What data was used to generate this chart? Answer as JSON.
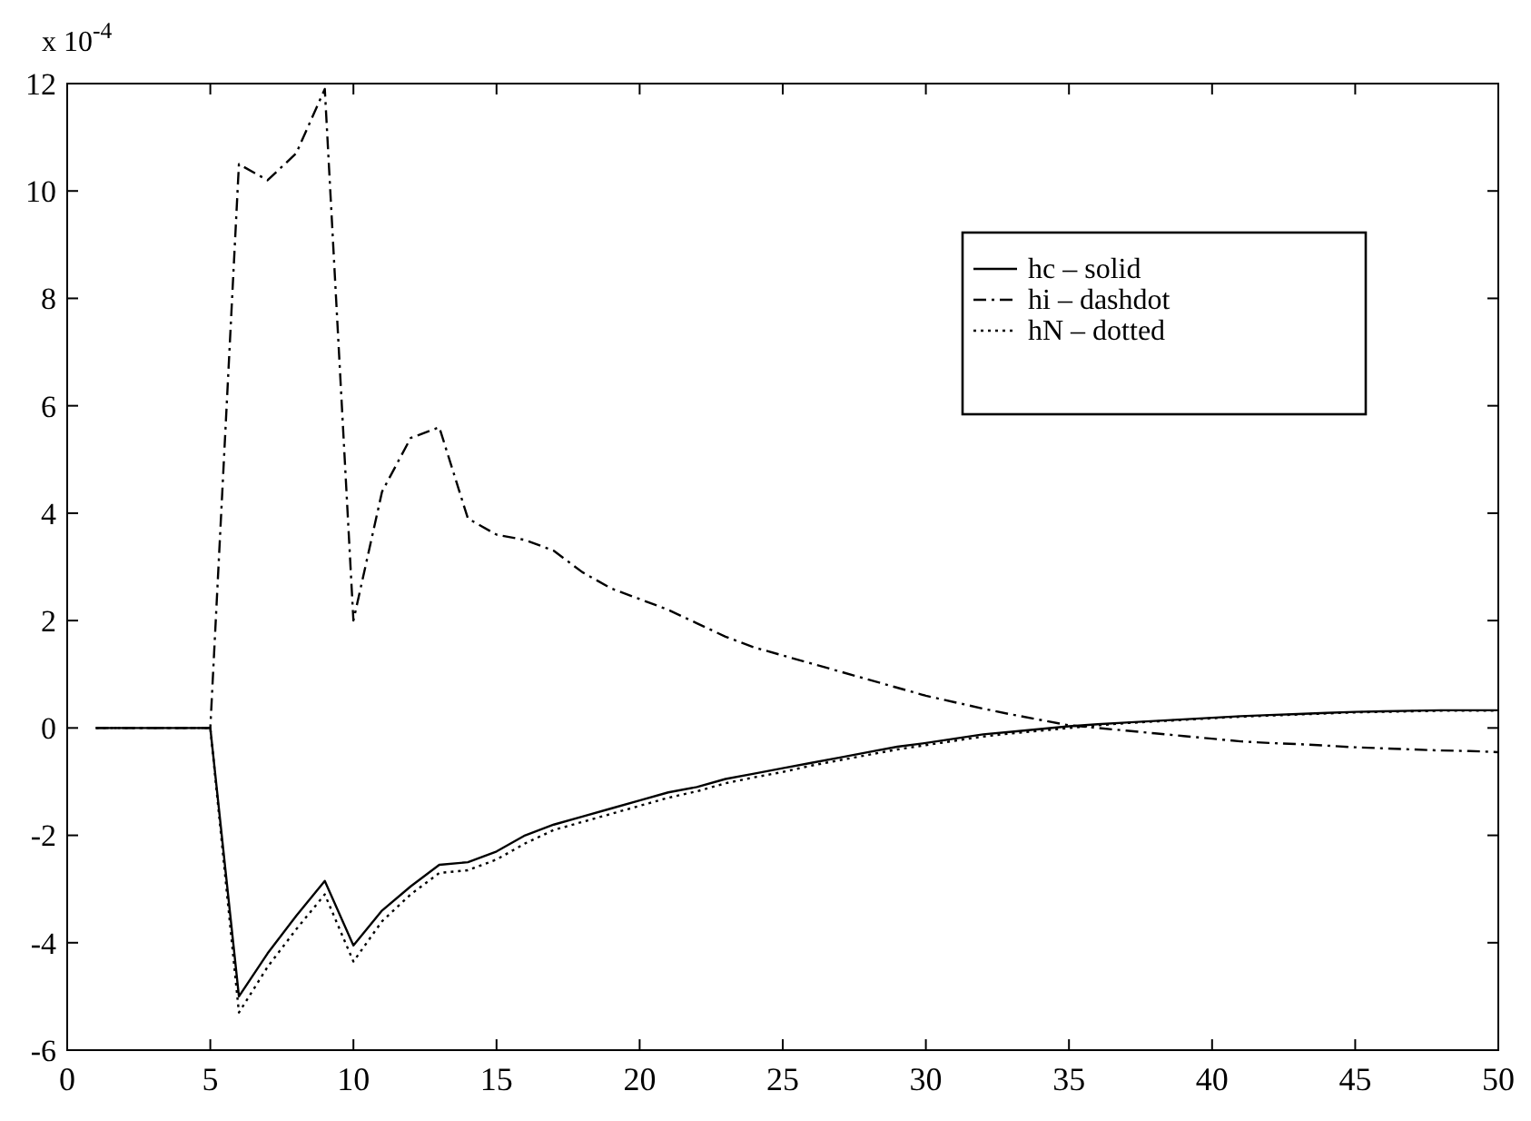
{
  "chart_data": {
    "type": "line",
    "ylabel": "x 10$^{-4}$",
    "xlim": [
      0,
      50
    ],
    "xticks": [
      0,
      5,
      10,
      15,
      20,
      25,
      30,
      35,
      40,
      45,
      50
    ],
    "ylim": [
      -6,
      12
    ],
    "yticks": [
      -6,
      -4,
      -2,
      0,
      2,
      4,
      6,
      8,
      10,
      12
    ],
    "grid": false,
    "legend": "top right",
    "marker": "none",
    "x": [
      1,
      2,
      3,
      4,
      5,
      6,
      7,
      8,
      9,
      10,
      11,
      12,
      13,
      14,
      15,
      16,
      17,
      18,
      19,
      20,
      21,
      22,
      23,
      24,
      25,
      26,
      27,
      28,
      29,
      30,
      31,
      32,
      33,
      34,
      35,
      36,
      37,
      38,
      39,
      40,
      41,
      42,
      43,
      44,
      45,
      46,
      47,
      48,
      49,
      50
    ],
    "series": [
      {
        "name": "hc – solid",
        "color": "#000000",
        "line_style": "solid",
        "values": [
          0,
          0,
          0,
          0,
          0,
          -5.0,
          -4.2,
          -3.5,
          -2.85,
          -4.05,
          -3.4,
          -2.95,
          -2.55,
          -2.5,
          -2.3,
          -2.0,
          -1.8,
          -1.65,
          -1.5,
          -1.35,
          -1.2,
          -1.1,
          -0.95,
          -0.85,
          -0.75,
          -0.65,
          -0.55,
          -0.45,
          -0.35,
          -0.28,
          -0.2,
          -0.12,
          -0.07,
          -0.02,
          0.03,
          0.07,
          0.1,
          0.13,
          0.16,
          0.19,
          0.22,
          0.24,
          0.26,
          0.28,
          0.3,
          0.31,
          0.32,
          0.33,
          0.33,
          0.33
        ]
      },
      {
        "name": "hi – dashdot",
        "color": "#000000",
        "line_style": "dashdot",
        "values": [
          0,
          0,
          0,
          0,
          0,
          10.5,
          10.2,
          10.7,
          11.9,
          2.0,
          4.4,
          5.4,
          5.6,
          3.9,
          3.6,
          3.5,
          3.3,
          2.9,
          2.6,
          2.4,
          2.2,
          1.95,
          1.7,
          1.5,
          1.35,
          1.2,
          1.05,
          0.9,
          0.75,
          0.6,
          0.48,
          0.36,
          0.25,
          0.15,
          0.05,
          0.0,
          -0.05,
          -0.1,
          -0.15,
          -0.2,
          -0.25,
          -0.28,
          -0.3,
          -0.33,
          -0.36,
          -0.38,
          -0.4,
          -0.42,
          -0.43,
          -0.45
        ]
      },
      {
        "name": "hN – dotted",
        "color": "#000000",
        "line_style": "dotted",
        "values": [
          0,
          0,
          0,
          0,
          0,
          -5.3,
          -4.45,
          -3.75,
          -3.1,
          -4.35,
          -3.6,
          -3.1,
          -2.7,
          -2.65,
          -2.45,
          -2.15,
          -1.9,
          -1.75,
          -1.6,
          -1.45,
          -1.3,
          -1.18,
          -1.03,
          -0.92,
          -0.82,
          -0.7,
          -0.6,
          -0.5,
          -0.4,
          -0.32,
          -0.24,
          -0.16,
          -0.1,
          -0.05,
          0.0,
          0.05,
          0.09,
          0.12,
          0.15,
          0.18,
          0.21,
          0.23,
          0.25,
          0.27,
          0.29,
          0.3,
          0.31,
          0.32,
          0.32,
          0.32
        ]
      }
    ]
  }
}
